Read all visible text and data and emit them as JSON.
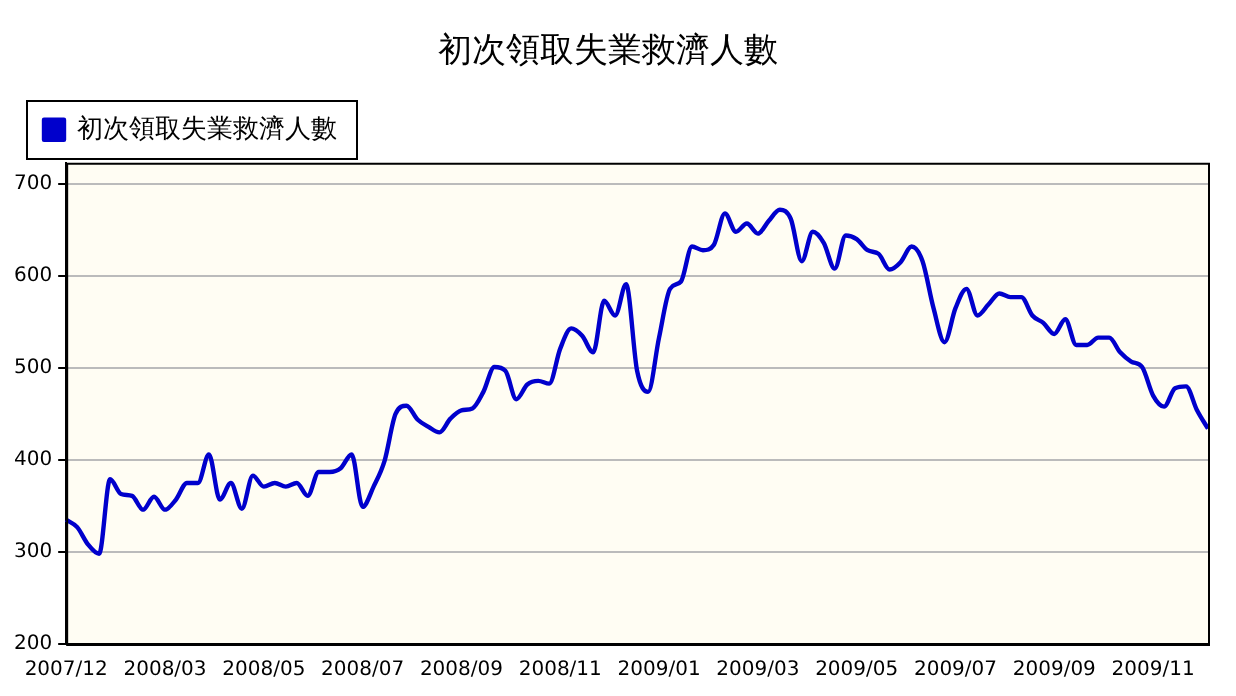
{
  "chart_data": {
    "type": "line",
    "title": "初次領取失業救濟人數",
    "categories": [
      "2007/12",
      null,
      null,
      null,
      null,
      null,
      null,
      null,
      null,
      "2008/03",
      null,
      null,
      null,
      null,
      null,
      null,
      null,
      null,
      "2008/05",
      null,
      null,
      null,
      null,
      null,
      null,
      null,
      null,
      "2008/07",
      null,
      null,
      null,
      null,
      null,
      null,
      null,
      null,
      "2008/09",
      null,
      null,
      null,
      null,
      null,
      null,
      null,
      null,
      "2008/11",
      null,
      null,
      null,
      null,
      null,
      null,
      null,
      null,
      "2009/01",
      null,
      null,
      null,
      null,
      null,
      null,
      null,
      null,
      "2009/03",
      null,
      null,
      null,
      null,
      null,
      null,
      null,
      null,
      "2009/05",
      null,
      null,
      null,
      null,
      null,
      null,
      null,
      null,
      "2009/07",
      null,
      null,
      null,
      null,
      null,
      null,
      null,
      null,
      "2009/09",
      null,
      null,
      null,
      null,
      null,
      null,
      null,
      null,
      "2009/11",
      null,
      null,
      null,
      null,
      null
    ],
    "series": [
      {
        "name": "初次領取失業救濟人數",
        "color": "#0000cc",
        "values": [
          335,
          327,
          308,
          298,
          379,
          363,
          361,
          346,
          360,
          346,
          357,
          375,
          375,
          406,
          357,
          375,
          347,
          383,
          371,
          375,
          371,
          375,
          361,
          387,
          387,
          391,
          406,
          349,
          371,
          399,
          450,
          459,
          444,
          436,
          430,
          445,
          454,
          456,
          474,
          501,
          497,
          466,
          482,
          486,
          483,
          521,
          543,
          535,
          517,
          573,
          557,
          591,
          497,
          474,
          533,
          586,
          594,
          632,
          628,
          634,
          668,
          648,
          657,
          646,
          660,
          672,
          662,
          616,
          648,
          636,
          608,
          644,
          640,
          628,
          624,
          607,
          615,
          632,
          616,
          565,
          528,
          565,
          586,
          557,
          569,
          581,
          577,
          577,
          557,
          549,
          537,
          553,
          525,
          525,
          533,
          533,
          517,
          507,
          501,
          470,
          458,
          478,
          480,
          454,
          434
        ]
      }
    ],
    "ylim": [
      200,
      723
    ],
    "yticks": [
      200,
      300,
      400,
      500,
      600,
      700
    ],
    "grid": "y",
    "legend": "top left",
    "marker": "none",
    "line_style": "solid"
  }
}
